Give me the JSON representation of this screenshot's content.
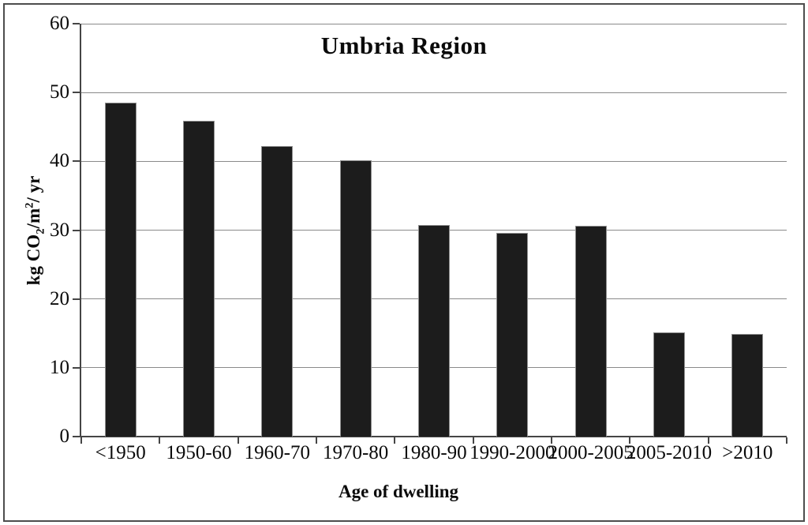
{
  "chart_data": {
    "type": "bar",
    "title": "Umbria Region",
    "categories": [
      "<1950",
      "1950-60",
      "1960-70",
      "1970-80",
      "1980-90",
      "1990-2000",
      "2000-2005",
      "2005-2010",
      ">2010"
    ],
    "values": [
      48.5,
      45.9,
      42.2,
      40.2,
      30.7,
      29.6,
      30.6,
      15.2,
      14.9
    ],
    "xlabel": "Age of dwelling",
    "ylabel": "kg CO2/m2/ yr",
    "ylabel_parts": [
      {
        "text": "kg CO",
        "style": "normal"
      },
      {
        "text": "2",
        "style": "sub"
      },
      {
        "text": "/m",
        "style": "normal"
      },
      {
        "text": "2",
        "style": "sup"
      },
      {
        "text": "/ yr",
        "style": "normal"
      }
    ],
    "ylim": [
      0,
      60
    ],
    "yticks": [
      0,
      10,
      20,
      30,
      40,
      50,
      60
    ],
    "grid": true,
    "legend": "none",
    "bar_color": "#1c1c1c",
    "bar_border_color": "#8f8f8f",
    "gridline_color": "#8a8a8a",
    "axis_color": "#454545",
    "frame_border_color": "#4d4d4d",
    "background": "#ffffff"
  }
}
